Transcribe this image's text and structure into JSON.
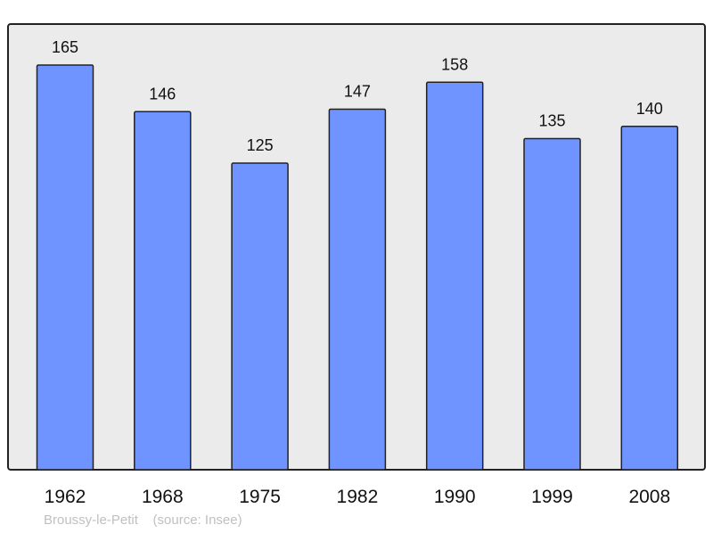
{
  "chart_data": {
    "type": "bar",
    "categories": [
      "1962",
      "1968",
      "1975",
      "1982",
      "1990",
      "1999",
      "2008"
    ],
    "values": [
      165,
      146,
      125,
      147,
      158,
      135,
      140
    ],
    "title": "",
    "xlabel": "",
    "ylabel": "",
    "ylim": [
      0,
      165
    ],
    "grid": false,
    "bar_color": "#7094ff",
    "background_color": "#ebebeb"
  },
  "footer": {
    "place": "Broussy-le-Petit",
    "source": "(source: Insee)"
  }
}
